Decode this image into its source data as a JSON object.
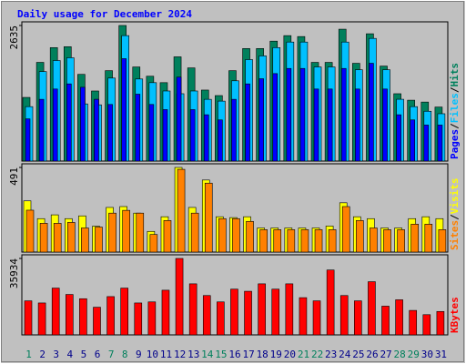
{
  "chart_data": {
    "type": "bar",
    "title": "Daily usage for December 2024",
    "categories": [
      "1",
      "2",
      "3",
      "4",
      "5",
      "6",
      "7",
      "8",
      "9",
      "10",
      "11",
      "12",
      "13",
      "14",
      "15",
      "16",
      "17",
      "18",
      "19",
      "20",
      "21",
      "22",
      "23",
      "24",
      "25",
      "26",
      "27",
      "28",
      "29",
      "30",
      "31"
    ],
    "category_colors": [
      "#00805c",
      "#00008b",
      "#00008b",
      "#00008b",
      "#00008b",
      "#00008b",
      "#00805c",
      "#00805c",
      "#00008b",
      "#00008b",
      "#00008b",
      "#00008b",
      "#00008b",
      "#00805c",
      "#00805c",
      "#00008b",
      "#00008b",
      "#00008b",
      "#00008b",
      "#00008b",
      "#00805c",
      "#00805c",
      "#00008b",
      "#00008b",
      "#00008b",
      "#00008b",
      "#00008b",
      "#00805c",
      "#00805c",
      "#00008b",
      "#00008b"
    ],
    "legend_separator": "/",
    "panels": [
      {
        "ylim": [
          0,
          2635
        ],
        "yticks": [
          2635
        ],
        "series": [
          {
            "name": "Hits",
            "color": "#00805c",
            "values": [
              1237,
              1918,
              2205,
              2223,
              1685,
              1362,
              1757,
              2635,
              1829,
              1649,
              1524,
              2026,
              1811,
              1380,
              1273,
              1757,
              2187,
              2187,
              2331,
              2438,
              2420,
              1918,
              1918,
              2563,
              1900,
              2474,
              1846,
              1309,
              1183,
              1147,
              1050
            ]
          },
          {
            "name": "Files",
            "color": "#00c0ff",
            "values": [
              1058,
              1739,
              1954,
              2008,
              1111,
              1093,
              1613,
              2438,
              1595,
              1524,
              1362,
              1309,
              1362,
              1200,
              1165,
              1560,
              1972,
              2044,
              2205,
              2313,
              2313,
              1829,
              1829,
              2313,
              1775,
              2384,
              1775,
              1201,
              1058,
              968,
              920
            ]
          },
          {
            "name": "Pages",
            "color": "#0000ff",
            "values": [
              820,
              1200,
              1400,
              1500,
              1434,
              1201,
              1100,
              1990,
              1300,
              1100,
              1000,
              1631,
              1000,
              900,
              800,
              1200,
              1500,
              1600,
              1700,
              1800,
              1800,
              1400,
              1400,
              1800,
              1400,
              1900,
              1400,
              900,
              800,
              700,
              700
            ]
          }
        ]
      },
      {
        "ylim": [
          0,
          491
        ],
        "yticks": [
          491
        ],
        "series": [
          {
            "name": "Visits",
            "color": "#ffff00",
            "values": [
              297,
              194,
              216,
              194,
              210,
              150,
              259,
              264,
              226,
              120,
              205,
              491,
              259,
              418,
              205,
              200,
              205,
              140,
              140,
              140,
              140,
              140,
              151,
              286,
              205,
              194,
              140,
              140,
              194,
              205,
              194
            ]
          },
          {
            "name": "Sites",
            "color": "#ff8000",
            "values": [
              243,
              167,
              167,
              172,
              140,
              145,
              226,
              242,
              226,
              102,
              183,
              480,
              226,
              400,
              194,
              194,
              178,
              130,
              130,
              130,
              130,
              130,
              130,
              264,
              183,
              140,
              130,
              130,
              162,
              162,
              130
            ]
          }
        ]
      },
      {
        "ylim": [
          0,
          35934
        ],
        "yticks": [
          35934
        ],
        "series": [
          {
            "name": "KBytes",
            "color": "#ff0000",
            "values": [
              16000,
              15000,
              22000,
              19000,
              17000,
              13000,
              18000,
              22000,
              15000,
              15500,
              21000,
              35934,
              24000,
              18500,
              15500,
              21500,
              20500,
              24000,
              21500,
              24000,
              17500,
              16000,
              30500,
              18500,
              16000,
              25000,
              13500,
              16500,
              11500,
              9500,
              11000
            ]
          }
        ]
      }
    ]
  }
}
